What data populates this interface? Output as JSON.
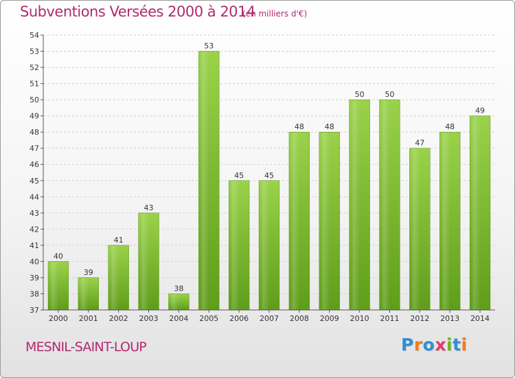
{
  "chart_data": {
    "type": "bar",
    "title": "Subventions Versées 2000 à 2014",
    "subtitle": "(en milliers d'€)",
    "xlabel": "",
    "ylabel": "",
    "ylim": [
      37,
      54
    ],
    "yticks": [
      37,
      38,
      39,
      40,
      41,
      42,
      43,
      44,
      45,
      46,
      47,
      48,
      49,
      50,
      51,
      52,
      53,
      54
    ],
    "grid": true,
    "categories": [
      "2000",
      "2001",
      "2002",
      "2003",
      "2004",
      "2005",
      "2006",
      "2007",
      "2008",
      "2009",
      "2010",
      "2011",
      "2012",
      "2013",
      "2014"
    ],
    "values": [
      40,
      39,
      41,
      43,
      38,
      53,
      45,
      45,
      48,
      48,
      50,
      50,
      47,
      48,
      49
    ],
    "bar_color": "#7cbf2c"
  },
  "footer": {
    "commune": "MESNIL-SAINT-LOUP",
    "brand": {
      "letters": [
        "P",
        "r",
        "o",
        "x",
        "i",
        "t",
        "i"
      ],
      "colors": [
        "#2f8fd6",
        "#ef7d1a",
        "#2f8fd6",
        "#e23b6b",
        "#6cb52a",
        "#2f8fd6",
        "#ef7d1a"
      ]
    }
  }
}
